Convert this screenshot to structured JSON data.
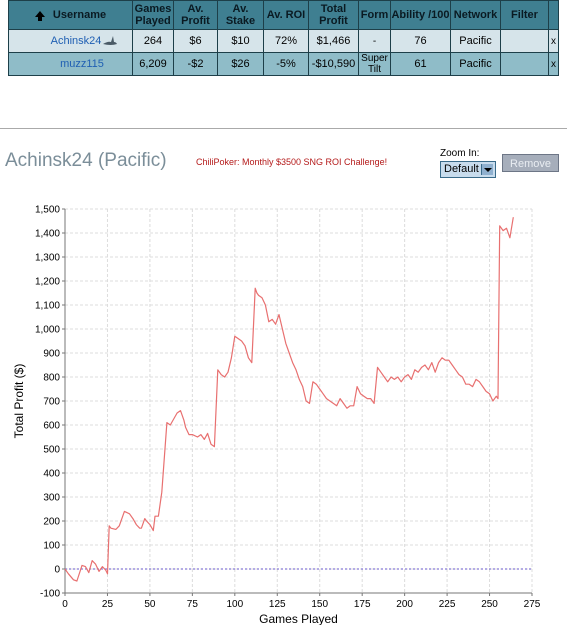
{
  "table": {
    "headers": [
      {
        "key": "username",
        "label": "Username"
      },
      {
        "key": "games",
        "label": "Games Played"
      },
      {
        "key": "avprofit",
        "label": "Av. Profit"
      },
      {
        "key": "avstake",
        "label": "Av. Stake"
      },
      {
        "key": "avroi",
        "label": "Av. ROI"
      },
      {
        "key": "totalprofit",
        "label": "Total Profit"
      },
      {
        "key": "form",
        "label": "Form"
      },
      {
        "key": "ability",
        "label": "Ability /100"
      },
      {
        "key": "network",
        "label": "Network"
      },
      {
        "key": "filter",
        "label": "Filter"
      }
    ],
    "rows": [
      {
        "username": "Achinsk24",
        "games": "264",
        "avprofit": "$6",
        "avstake": "$10",
        "avroi": "72%",
        "totalprofit": "$1,466",
        "form": "-",
        "ability": "76",
        "network": "Pacific",
        "filter": "",
        "remove": "x"
      },
      {
        "username": "muzz115",
        "games": "6,209",
        "avprofit": "-$2",
        "avstake": "$26",
        "avroi": "-5%",
        "totalprofit": "-$10,590",
        "form": "Super Tilt",
        "ability": "61",
        "network": "Pacific",
        "filter": "",
        "remove": "x"
      }
    ]
  },
  "header": {
    "title": "Achinsk24 (Pacific)",
    "challenge": "ChiliPoker: Monthly $3500 SNG ROI Challenge!",
    "zoom_label": "Zoom In:",
    "zoom_value": "Default",
    "remove_label": "Remove"
  },
  "colors": {
    "line": "#e87070",
    "zero_line": "#6a5acd",
    "grid": "#dcdcdc",
    "header_bg": "#3f7f91",
    "row_a": "#d6e4ea",
    "row_b": "#8fbcc8"
  },
  "chart_data": {
    "type": "line",
    "xlabel": "Games Played",
    "ylabel": "Total Profit ($)",
    "xlim": [
      0,
      275
    ],
    "ylim": [
      -100,
      1500
    ],
    "xticks": [
      0,
      25,
      50,
      75,
      100,
      125,
      150,
      175,
      200,
      225,
      250,
      275
    ],
    "yticks": [
      -100,
      0,
      100,
      200,
      300,
      400,
      500,
      600,
      700,
      800,
      900,
      1000,
      1100,
      1200,
      1300,
      1400,
      1500
    ],
    "grid": true,
    "zero_line": true,
    "series": [
      {
        "x": [
          0,
          2,
          5,
          7,
          10,
          12,
          14,
          16,
          18,
          20,
          22,
          24,
          25,
          26,
          27,
          30,
          32,
          35,
          38,
          40,
          42,
          44,
          45,
          47,
          48,
          50,
          52,
          53,
          55,
          57,
          60,
          62,
          64,
          66,
          68,
          70,
          71,
          73,
          75,
          78,
          80,
          82,
          84,
          86,
          88,
          90,
          92,
          94,
          96,
          98,
          100,
          102,
          104,
          106,
          108,
          110,
          112,
          113,
          114,
          116,
          118,
          120,
          122,
          124,
          126,
          128,
          130,
          132,
          134,
          136,
          138,
          140,
          142,
          144,
          146,
          148,
          150,
          152,
          154,
          156,
          158,
          160,
          162,
          164,
          166,
          168,
          170,
          172,
          174,
          176,
          178,
          180,
          182,
          184,
          186,
          188,
          190,
          192,
          194,
          196,
          198,
          200,
          202,
          204,
          206,
          208,
          210,
          212,
          214,
          216,
          218,
          220,
          222,
          224,
          226,
          228,
          230,
          232,
          234,
          236,
          238,
          240,
          242,
          244,
          246,
          248,
          250,
          252,
          254,
          255,
          256,
          258,
          260,
          262,
          264
        ],
        "y": [
          0,
          -20,
          -45,
          -50,
          15,
          10,
          -15,
          35,
          20,
          -10,
          10,
          -5,
          -20,
          180,
          170,
          165,
          180,
          240,
          230,
          210,
          185,
          170,
          170,
          210,
          200,
          185,
          160,
          220,
          220,
          320,
          610,
          600,
          625,
          650,
          660,
          620,
          590,
          560,
          560,
          550,
          560,
          540,
          565,
          520,
          510,
          830,
          810,
          800,
          820,
          880,
          970,
          960,
          950,
          930,
          880,
          860,
          1170,
          1150,
          1140,
          1130,
          1100,
          1030,
          1040,
          1020,
          1060,
          1000,
          940,
          900,
          860,
          830,
          790,
          760,
          700,
          690,
          780,
          770,
          750,
          730,
          710,
          700,
          690,
          680,
          710,
          690,
          670,
          680,
          680,
          760,
          730,
          720,
          710,
          710,
          690,
          840,
          820,
          800,
          780,
          800,
          790,
          800,
          780,
          800,
          810,
          790,
          830,
          820,
          840,
          850,
          830,
          860,
          820,
          860,
          880,
          870,
          870,
          850,
          830,
          810,
          800,
          770,
          770,
          760,
          790,
          780,
          760,
          740,
          730,
          700,
          720,
          710,
          1430,
          1410,
          1420,
          1380,
          1466
        ]
      }
    ]
  }
}
